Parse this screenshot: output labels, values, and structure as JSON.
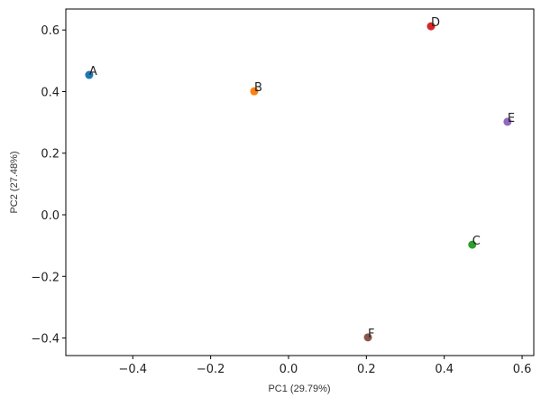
{
  "chart_data": {
    "type": "scatter",
    "title": "",
    "xlabel": "PC1 (29.79%)",
    "ylabel": "PC2 (27.48%)",
    "xlim": [
      -0.572,
      0.63
    ],
    "ylim": [
      -0.457,
      0.668
    ],
    "xticks": [
      -0.4,
      -0.2,
      0.0,
      0.2,
      0.4,
      0.6
    ],
    "xtick_labels": [
      "−0.4",
      "−0.2",
      "0.0",
      "0.2",
      "0.4",
      "0.6"
    ],
    "yticks": [
      -0.4,
      -0.2,
      0.0,
      0.2,
      0.4,
      0.6
    ],
    "ytick_labels": [
      "−0.4",
      "−0.2",
      "0.0",
      "0.2",
      "0.4",
      "0.6"
    ],
    "grid": false,
    "points": [
      {
        "label": "A",
        "x": -0.512,
        "y": 0.454,
        "color": "#1f77b4"
      },
      {
        "label": "B",
        "x": -0.088,
        "y": 0.401,
        "color": "#ff7f0e"
      },
      {
        "label": "C",
        "x": 0.472,
        "y": -0.097,
        "color": "#2ca02c"
      },
      {
        "label": "D",
        "x": 0.366,
        "y": 0.612,
        "color": "#d62728"
      },
      {
        "label": "E",
        "x": 0.5625,
        "y": 0.302,
        "color": "#9467bd"
      },
      {
        "label": "F",
        "x": 0.204,
        "y": -0.398,
        "color": "#8c564b"
      }
    ]
  }
}
